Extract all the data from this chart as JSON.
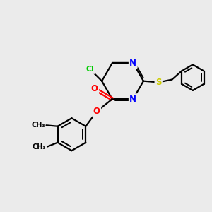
{
  "background_color": "#ebebeb",
  "bond_color": "#000000",
  "N_color": "#0000ff",
  "O_color": "#ff0000",
  "S_color": "#cccc00",
  "Cl_color": "#00cc00",
  "figsize": [
    3.0,
    3.0
  ],
  "dpi": 100,
  "xlim": [
    0,
    10
  ],
  "ylim": [
    0,
    10
  ]
}
